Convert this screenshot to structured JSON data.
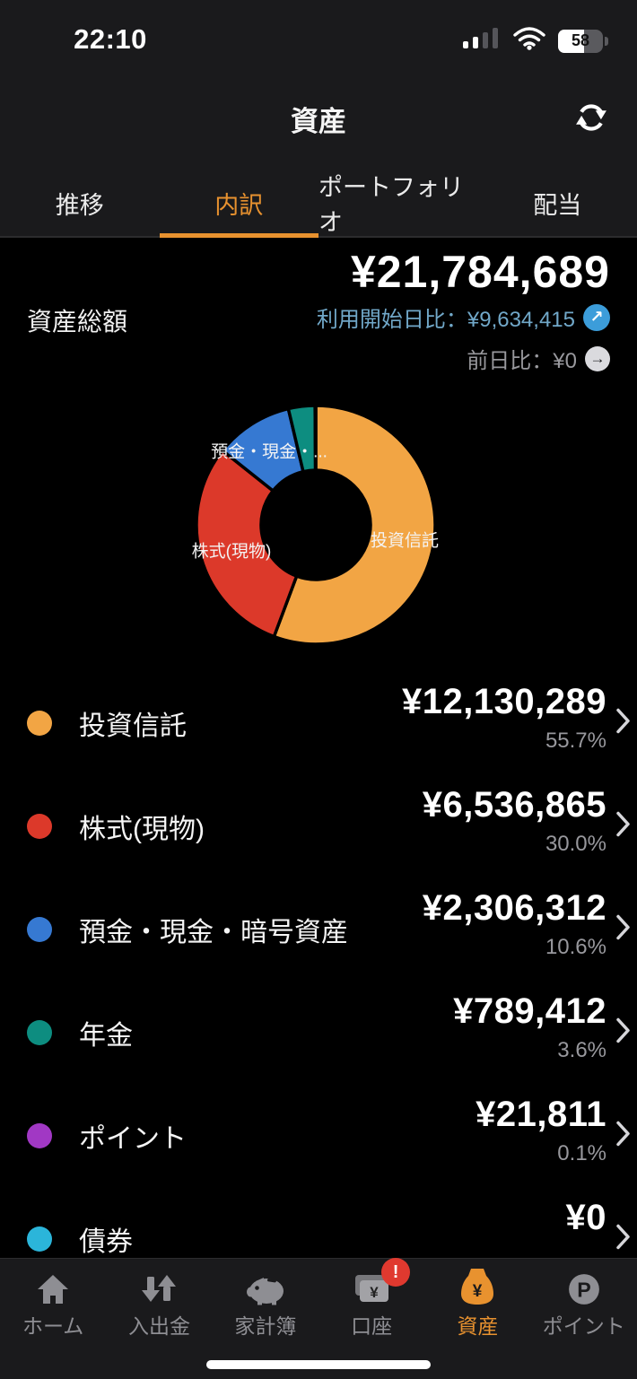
{
  "status_bar": {
    "time": "22:10",
    "battery_level": "58"
  },
  "header": {
    "title": "資産"
  },
  "tabs": [
    {
      "label": "推移",
      "active": false
    },
    {
      "label": "内訳",
      "active": true
    },
    {
      "label": "ポートフォリオ",
      "active": false
    },
    {
      "label": "配当",
      "active": false
    }
  ],
  "summary": {
    "label": "資産総額",
    "total": "¥21,784,689",
    "since_start": "利用開始日比：¥9,634,415",
    "since_start_arrow": "↗",
    "day_change": "前日比：¥0",
    "day_change_arrow": "→"
  },
  "chart_data": {
    "type": "pie",
    "subtype": "donut",
    "start_angle_deg": 0,
    "direction": "clockwise",
    "series": [
      {
        "name": "投資信託",
        "value": 12130289,
        "percent": 55.7,
        "color": "#F2A544"
      },
      {
        "name": "株式(現物)",
        "value": 6536865,
        "percent": 30.0,
        "color": "#DC392A"
      },
      {
        "name": "預金・現金・暗号資産",
        "value": 2306312,
        "percent": 10.6,
        "color": "#3679D2"
      },
      {
        "name": "年金",
        "value": 789412,
        "percent": 3.6,
        "color": "#0D8D80"
      },
      {
        "name": "ポイント",
        "value": 21811,
        "percent": 0.1,
        "color": "#A138C4"
      },
      {
        "name": "債券",
        "value": 0,
        "percent": 0.0,
        "color": "#2BB5DA"
      }
    ],
    "segment_labels": [
      {
        "text": "預金・現金・...",
        "x": 148,
        "y": 82
      },
      {
        "text": "株式(現物)",
        "x": 106,
        "y": 193
      },
      {
        "text": "投資信託",
        "x": 299,
        "y": 181
      }
    ]
  },
  "assets": {
    "items": [
      {
        "label": "投資信託",
        "amount": "¥12,130,289",
        "percent": "55.7%",
        "color": "#F2A544"
      },
      {
        "label": "株式(現物)",
        "amount": "¥6,536,865",
        "percent": "30.0%",
        "color": "#DC392A"
      },
      {
        "label": "預金・現金・暗号資産",
        "amount": "¥2,306,312",
        "percent": "10.6%",
        "color": "#3679D2"
      },
      {
        "label": "年金",
        "amount": "¥789,412",
        "percent": "3.6%",
        "color": "#0D8D80"
      },
      {
        "label": "ポイント",
        "amount": "¥21,811",
        "percent": "0.1%",
        "color": "#A138C4"
      },
      {
        "label": "債券",
        "amount": "¥0",
        "percent": "",
        "color": "#2BB5DA"
      }
    ]
  },
  "bottom_nav": {
    "items": [
      {
        "label": "ホーム",
        "active": false
      },
      {
        "label": "入出金",
        "active": false
      },
      {
        "label": "家計簿",
        "active": false
      },
      {
        "label": "口座",
        "active": false,
        "badge": "!"
      },
      {
        "label": "資産",
        "active": true
      },
      {
        "label": "ポイント",
        "active": false
      }
    ]
  },
  "icons": {
    "yen_glyph": "¥",
    "point_glyph": "P"
  },
  "colors": {
    "accent_orange": "#E8922F",
    "link_blue": "#71A8C9",
    "blue_badge": "#3C9DDA",
    "gray_badge": "#DADADE",
    "badge_red": "#E0392F",
    "chrome_bg": "#1A1A1C",
    "page_bg": "#000000"
  }
}
